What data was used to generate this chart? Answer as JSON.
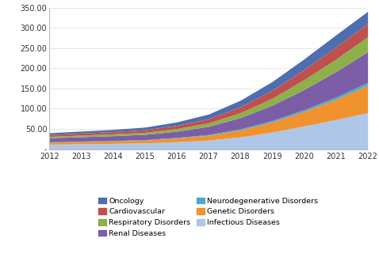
{
  "years": [
    2012,
    2013,
    2014,
    2015,
    2016,
    2017,
    2018,
    2019,
    2020,
    2021,
    2022
  ],
  "series": {
    "Infectious Diseases": [
      12.0,
      13.0,
      14.0,
      15.0,
      18.0,
      22.0,
      30.0,
      42.0,
      57.0,
      73.0,
      90.0
    ],
    "Genetic Disorders": [
      5.0,
      5.5,
      6.0,
      7.0,
      9.0,
      12.0,
      17.0,
      25.0,
      36.0,
      50.0,
      68.0
    ],
    "Neurodegenerative Disorders": [
      0.8,
      0.9,
      1.0,
      1.2,
      1.5,
      2.0,
      2.8,
      3.5,
      4.5,
      5.5,
      7.0
    ],
    "Renal Diseases": [
      10.0,
      11.0,
      12.0,
      13.0,
      15.5,
      20.0,
      28.0,
      38.0,
      50.0,
      63.0,
      76.0
    ],
    "Respiratory Disorders": [
      3.5,
      4.0,
      4.5,
      5.0,
      6.5,
      8.5,
      12.0,
      17.0,
      24.0,
      31.0,
      37.0
    ],
    "Cardiovascular": [
      4.5,
      5.0,
      5.5,
      6.5,
      8.0,
      10.5,
      15.0,
      20.0,
      25.5,
      30.0,
      33.0
    ],
    "Oncology": [
      4.5,
      5.0,
      5.5,
      6.5,
      8.5,
      11.5,
      16.0,
      21.5,
      26.0,
      30.0,
      30.0
    ]
  },
  "colors": {
    "Infectious Diseases": "#aec6e8",
    "Genetic Disorders": "#f0922e",
    "Neurodegenerative Disorders": "#4bacc6",
    "Renal Diseases": "#7b5ea7",
    "Respiratory Disorders": "#8db04a",
    "Cardiovascular": "#c0504d",
    "Oncology": "#4f6eaf"
  },
  "ylim": [
    0,
    350
  ],
  "yticks": [
    0,
    50,
    100,
    150,
    200,
    250,
    300,
    350
  ],
  "ytick_labels": [
    "-",
    "50.00",
    "100.00",
    "150.00",
    "200.00",
    "250.00",
    "300.00",
    "350.00"
  ],
  "stack_order": [
    "Infectious Diseases",
    "Genetic Disorders",
    "Neurodegenerative Disorders",
    "Renal Diseases",
    "Respiratory Disorders",
    "Cardiovascular",
    "Oncology"
  ],
  "legend_order": [
    "Oncology",
    "Cardiovascular",
    "Respiratory Disorders",
    "Renal Diseases",
    "Neurodegenerative Disorders",
    "Genetic Disorders",
    "Infectious Diseases"
  ],
  "legend_ncol": 2,
  "figsize": [
    4.78,
    3.25
  ],
  "dpi": 100
}
